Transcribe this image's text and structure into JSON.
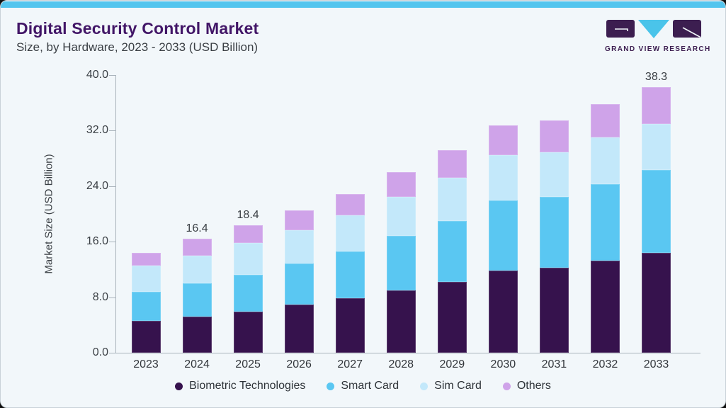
{
  "header": {
    "title": "Digital Security Control Market",
    "subtitle": "Size, by Hardware, 2023 - 2033 (USD Billion)"
  },
  "brand": {
    "name": "GRAND VIEW RESEARCH",
    "purple": "#3c1e50",
    "cyan": "#4ac4ea"
  },
  "colors": {
    "accent_top_bar": "#54c5ee",
    "card_background": "#f2f7fa",
    "title_purple": "#421667",
    "axis_text": "#3a3f44"
  },
  "chart_data": {
    "type": "bar",
    "stacked": true,
    "title": "Digital Security Control Market Size, by Hardware, 2023 - 2033 (USD Billion)",
    "xlabel": "",
    "ylabel": "Market Size (USD Billion)",
    "ylim": [
      0,
      40
    ],
    "ytick_labels": [
      "0.0",
      "8.0",
      "16.0",
      "24.0",
      "32.0",
      "40.0"
    ],
    "grid": false,
    "legend_position": "bottom",
    "categories": [
      "2023",
      "2024",
      "2025",
      "2026",
      "2027",
      "2028",
      "2029",
      "2030",
      "2031",
      "2032",
      "2033"
    ],
    "series": [
      {
        "name": "Biometric Technologies",
        "color": "#36124d",
        "values": [
          4.6,
          5.2,
          5.9,
          6.9,
          7.9,
          9.0,
          10.2,
          11.8,
          12.2,
          13.3,
          14.4
        ]
      },
      {
        "name": "Smart Card",
        "color": "#5ac7f2",
        "values": [
          4.2,
          4.8,
          5.3,
          6.0,
          6.7,
          7.8,
          8.8,
          10.1,
          10.2,
          11.0,
          11.9
        ]
      },
      {
        "name": "Sim Card",
        "color": "#c3e8fa",
        "values": [
          3.8,
          4.0,
          4.6,
          4.8,
          5.2,
          5.7,
          6.2,
          6.6,
          6.5,
          6.7,
          6.7
        ]
      },
      {
        "name": "Others",
        "color": "#cfa3e9",
        "values": [
          1.8,
          2.4,
          2.6,
          2.8,
          3.1,
          3.5,
          4.0,
          4.3,
          4.6,
          4.8,
          5.3
        ]
      }
    ],
    "bar_total_labels": [
      "",
      "16.4",
      "18.4",
      "",
      "",
      "",
      "",
      "",
      "",
      "",
      "38.3"
    ]
  }
}
